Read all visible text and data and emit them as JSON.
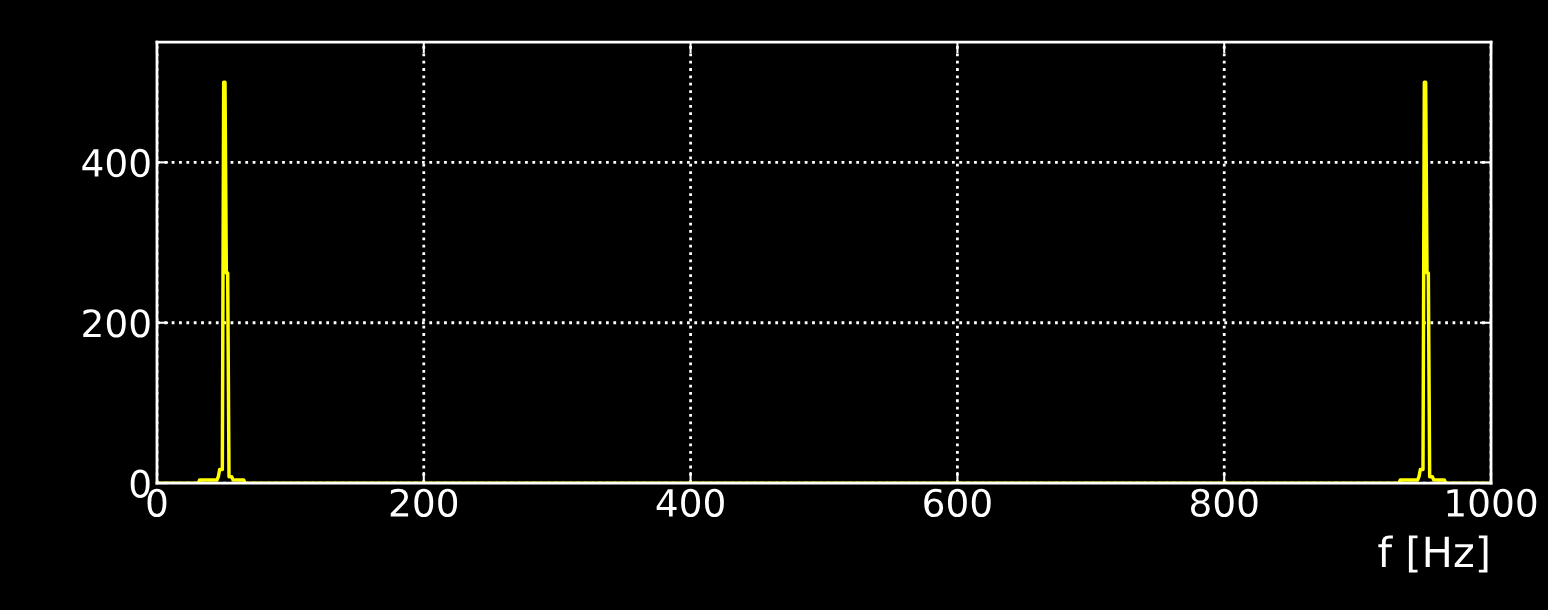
{
  "chart_data": {
    "type": "line",
    "xlabel": "f [Hz]",
    "series": [
      {
        "color": "#ffff00",
        "x": [
          0,
          31,
          32,
          45,
          46,
          47,
          49,
          50,
          51,
          52,
          53,
          54,
          56,
          57,
          65,
          66,
          931,
          932,
          945,
          946,
          947,
          949,
          950,
          951,
          952,
          953,
          954,
          956,
          957,
          965,
          966,
          1000
        ],
        "values": [
          0,
          0,
          4,
          4,
          8,
          17,
          17,
          500,
          500,
          262,
          262,
          8,
          8,
          4,
          4,
          0,
          0,
          4,
          4,
          8,
          17,
          17,
          500,
          500,
          262,
          262,
          8,
          8,
          4,
          4,
          0,
          0
        ]
      }
    ],
    "xlim": [
      0,
      1000
    ],
    "xticks": [
      0,
      200,
      400,
      600,
      800,
      1000
    ],
    "ylim": [
      0,
      550
    ],
    "yticks": [
      0,
      200,
      400
    ],
    "grid": true,
    "legend": false,
    "marker": "none",
    "line_style": "solid"
  }
}
